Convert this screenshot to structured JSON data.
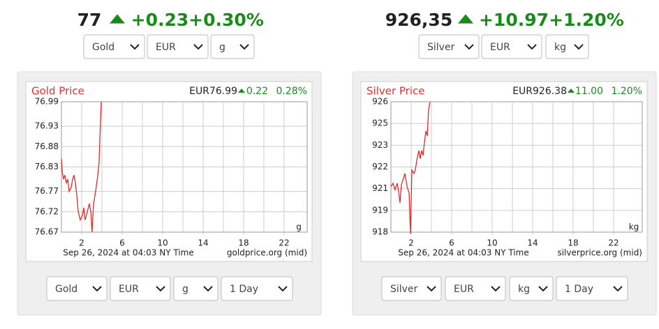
{
  "panels": [
    {
      "price": "77",
      "change": "+0.23",
      "percent": "+0.30%",
      "selects": [
        "Gold",
        "EUR",
        "g"
      ],
      "bottom_selects": [
        "Gold",
        "EUR",
        "g",
        "1 Day"
      ]
    },
    {
      "price": "926,35",
      "change": "+10.97",
      "percent": "+1.20%",
      "selects": [
        "Silver",
        "EUR",
        "kg"
      ],
      "bottom_selects": [
        "Silver",
        "EUR",
        "kg",
        "1 Day"
      ]
    }
  ],
  "chart_data": [
    {
      "type": "line",
      "title": "Gold Price",
      "quote": "EUR76.99",
      "change": "0.22",
      "percent": "0.28%",
      "unit": "g",
      "footer": "Sep 26, 2024 at 04:03 NY Time",
      "source": "goldprice.org (mid)",
      "color": "#e02a2a",
      "grid": true,
      "xlim": [
        0,
        24
      ],
      "xticks": [
        2,
        6,
        10,
        14,
        18,
        22
      ],
      "xminor_ticks": [
        4,
        8,
        12,
        16,
        20
      ],
      "ylim": [
        76.67,
        76.99
      ],
      "yticks": [
        76.99,
        76.93,
        76.88,
        76.83,
        76.77,
        76.72,
        76.67
      ],
      "x": [
        0,
        0.07,
        0.21,
        0.34,
        0.48,
        0.62,
        0.76,
        0.97,
        1.1,
        1.24,
        1.38,
        1.52,
        1.66,
        1.86,
        2.07,
        2.21,
        2.34,
        2.55,
        2.76,
        2.9,
        3.03,
        3.17,
        3.38,
        3.59,
        3.72,
        3.93
      ],
      "values": [
        76.85,
        76.82,
        76.8,
        76.81,
        76.79,
        76.8,
        76.77,
        76.78,
        76.8,
        76.81,
        76.79,
        76.76,
        76.72,
        76.7,
        76.71,
        76.73,
        76.7,
        76.72,
        76.74,
        76.72,
        76.67,
        76.74,
        76.77,
        76.81,
        76.84,
        76.99
      ]
    },
    {
      "type": "line",
      "title": "Silver Price",
      "quote": "EUR926.38",
      "change": "11.00",
      "percent": "1.20%",
      "unit": "kg",
      "footer": "Sep 26, 2024 at 04:03 NY Time",
      "source": "silverprice.org (mid)",
      "color": "#e02a2a",
      "grid": true,
      "xlim": [
        0,
        24
      ],
      "xticks": [
        2,
        6,
        10,
        14,
        18,
        22
      ],
      "xminor_ticks": [
        4,
        8,
        12,
        16,
        20
      ],
      "ylim": [
        918,
        926
      ],
      "yticks": [
        926,
        {
          "value": 924.67,
          "label": "925"
        },
        {
          "value": 923.33,
          "label": "923"
        },
        922,
        {
          "value": 920.67,
          "label": "921"
        },
        {
          "value": 919.33,
          "label": "919"
        },
        918
      ],
      "x": [
        0,
        0.21,
        0.41,
        0.62,
        0.76,
        0.9,
        1.03,
        1.24,
        1.38,
        1.59,
        1.79,
        1.93,
        2.07,
        2.28,
        2.41,
        2.55,
        2.76,
        2.9,
        3.03,
        3.17,
        3.31,
        3.45,
        3.59,
        3.72,
        3.86
      ],
      "values": [
        920.8,
        921.0,
        920.6,
        921.0,
        920.5,
        919.8,
        920.9,
        921.3,
        921.6,
        920.8,
        920.4,
        917.9,
        921.8,
        921.6,
        921.8,
        922.4,
        923.0,
        922.5,
        923.0,
        922.7,
        923.5,
        924.2,
        923.9,
        925.5,
        926
      ]
    }
  ]
}
